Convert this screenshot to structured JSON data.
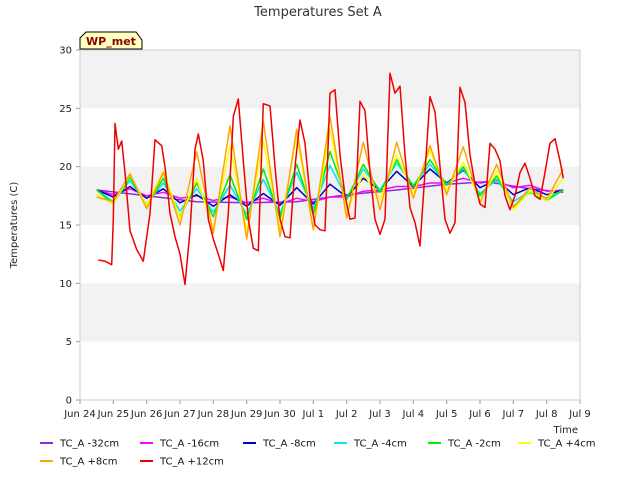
{
  "chart_data": {
    "type": "line",
    "title": "Temperatures Set A",
    "xlabel": "Time",
    "ylabel": "Temperatures (C)",
    "badge": "WP_met",
    "x_unit": "days starting Jun 24",
    "xlim": [
      0,
      15
    ],
    "ylim": [
      0,
      30
    ],
    "y_ticks": [
      0,
      5,
      10,
      15,
      20,
      25,
      30
    ],
    "x_ticks": [
      "Jun 24",
      "Jun 25",
      "Jun 26",
      "Jun 27",
      "Jun 28",
      "Jun 29",
      "Jun 30",
      "Jul 1",
      "Jul 2",
      "Jul 3",
      "Jul 4",
      "Jul 5",
      "Jul 6",
      "Jul 7",
      "Jul 8",
      "Jul 9"
    ],
    "grid": "horizontal bands",
    "legend_position": "bottom",
    "series": [
      {
        "name": "TC_A -32cm",
        "color": "#8a2be2",
        "x": [
          0.5,
          2,
          3.5,
          5,
          6.5,
          8,
          9.5,
          11,
          12.2,
          13.5,
          14.5
        ],
        "y": [
          18.0,
          17.5,
          17.0,
          16.9,
          17.0,
          17.6,
          18.0,
          18.5,
          18.7,
          18.1,
          17.8
        ]
      },
      {
        "name": "TC_A -16cm",
        "color": "#ff00ff",
        "x": [
          0.5,
          1.0,
          1.5,
          2.0,
          2.5,
          3.0,
          3.5,
          4.0,
          4.5,
          5.0,
          5.5,
          6.0,
          6.5,
          7.0,
          7.5,
          8.0,
          8.5,
          9.0,
          9.5,
          10.0,
          10.5,
          11.0,
          11.5,
          12.0,
          12.5,
          13.0,
          13.5,
          14.0,
          14.5
        ],
        "y": [
          18.0,
          17.6,
          18.1,
          17.5,
          17.8,
          17.3,
          17.5,
          17.1,
          17.4,
          16.9,
          17.3,
          16.8,
          17.3,
          17.0,
          17.4,
          17.4,
          17.9,
          18.0,
          18.3,
          18.3,
          18.6,
          18.6,
          19.0,
          18.6,
          18.8,
          18.2,
          18.4,
          17.9,
          18.0
        ]
      },
      {
        "name": "TC_A -8cm",
        "color": "#0000cd",
        "x": [
          0.5,
          1.0,
          1.5,
          2.0,
          2.5,
          3.0,
          3.5,
          4.0,
          4.5,
          5.0,
          5.5,
          6.0,
          6.5,
          7.0,
          7.5,
          8.0,
          8.5,
          9.0,
          9.5,
          10.0,
          10.5,
          11.0,
          11.5,
          12.0,
          12.5,
          13.0,
          13.5,
          14.0,
          14.5
        ],
        "y": [
          18.0,
          17.4,
          18.3,
          17.3,
          18.1,
          16.9,
          17.6,
          16.6,
          17.6,
          16.6,
          17.7,
          16.7,
          18.2,
          16.8,
          18.5,
          17.4,
          19.0,
          18.0,
          19.6,
          18.3,
          19.8,
          18.6,
          19.7,
          18.2,
          18.9,
          17.6,
          18.2,
          17.6,
          18.0
        ]
      },
      {
        "name": "TC_A -4cm",
        "color": "#00e5ee",
        "x": [
          0.5,
          1.0,
          1.5,
          2.0,
          2.5,
          3.0,
          3.5,
          4.0,
          4.5,
          5.0,
          5.5,
          6.0,
          6.5,
          7.0,
          7.5,
          8.0,
          8.5,
          9.0,
          9.5,
          10.0,
          10.5,
          11.0,
          11.5,
          12.0,
          12.5,
          13.0,
          13.5,
          14.0,
          14.5
        ],
        "y": [
          18.0,
          17.0,
          18.8,
          16.8,
          18.6,
          16.2,
          18.1,
          16.1,
          18.4,
          15.9,
          18.9,
          16.0,
          19.5,
          16.4,
          20.1,
          17.3,
          19.8,
          18.0,
          20.3,
          18.4,
          20.2,
          18.5,
          19.8,
          17.7,
          18.9,
          17.0,
          17.9,
          17.3,
          18.0
        ]
      },
      {
        "name": "TC_A -2cm",
        "color": "#00ee00",
        "x": [
          0.5,
          1.0,
          1.5,
          2.0,
          2.5,
          3.0,
          3.5,
          4.0,
          4.5,
          5.0,
          5.5,
          6.0,
          6.5,
          7.0,
          7.5,
          8.0,
          8.5,
          9.0,
          9.5,
          10.0,
          10.5,
          11.0,
          11.5,
          12.0,
          12.5,
          13.0,
          13.5,
          14.0,
          14.5
        ],
        "y": [
          18.0,
          16.8,
          19.1,
          16.6,
          19.0,
          15.7,
          18.6,
          15.7,
          19.3,
          15.5,
          19.8,
          15.6,
          20.2,
          15.9,
          21.3,
          17.2,
          20.2,
          17.8,
          20.6,
          18.3,
          20.6,
          18.4,
          20.0,
          17.5,
          19.2,
          16.6,
          17.8,
          17.1,
          18.0
        ]
      },
      {
        "name": "TC_A +4cm",
        "color": "#ffff00",
        "x": [
          0.5,
          1.0,
          1.5,
          2.0,
          2.5,
          3.0,
          3.5,
          4.0,
          4.5,
          5.0,
          5.5,
          6.0,
          6.5,
          7.0,
          7.5,
          8.0,
          8.5,
          9.0,
          9.5,
          10.0,
          10.5,
          11.0,
          11.5,
          12.0,
          12.5,
          13.0,
          13.5,
          14.0,
          14.5
        ],
        "y": [
          17.6,
          16.8,
          19.3,
          16.7,
          19.6,
          15.6,
          19.0,
          14.7,
          21.8,
          14.5,
          22.2,
          14.7,
          22.7,
          14.6,
          23.2,
          16.1,
          19.4,
          17.2,
          21.0,
          17.7,
          21.4,
          17.9,
          20.4,
          17.1,
          19.6,
          16.3,
          17.9,
          17.1,
          19.0
        ]
      },
      {
        "name": "TC_A +8cm",
        "color": "#ffa500",
        "x": [
          0.5,
          1.0,
          1.5,
          2.0,
          2.5,
          3.0,
          3.5,
          4.0,
          4.5,
          5.0,
          5.5,
          6.0,
          6.5,
          7.0,
          7.5,
          8.0,
          8.5,
          9.0,
          9.5,
          10.0,
          10.5,
          11.0,
          11.5,
          12.0,
          12.5,
          13.0,
          13.5,
          14.0,
          14.5
        ],
        "y": [
          17.4,
          17.0,
          19.4,
          16.4,
          19.5,
          15.0,
          21.3,
          14.3,
          23.5,
          13.8,
          23.9,
          14.0,
          23.2,
          14.6,
          24.3,
          15.6,
          22.1,
          16.3,
          22.1,
          17.3,
          21.8,
          17.6,
          21.7,
          16.9,
          20.2,
          16.5,
          18.2,
          17.2,
          19.8
        ]
      },
      {
        "name": "TC_A +12cm",
        "color": "#ee0000",
        "x": [
          0.55,
          0.75,
          0.95,
          1.0,
          1.05,
          1.15,
          1.25,
          1.35,
          1.5,
          1.7,
          1.9,
          2.1,
          2.25,
          2.45,
          2.55,
          2.7,
          2.85,
          3.0,
          3.15,
          3.3,
          3.45,
          3.55,
          3.7,
          3.85,
          4.0,
          4.15,
          4.3,
          4.45,
          4.6,
          4.75,
          4.9,
          5.05,
          5.2,
          5.35,
          5.5,
          5.7,
          5.85,
          6.0,
          6.15,
          6.3,
          6.45,
          6.6,
          6.75,
          6.9,
          7.05,
          7.2,
          7.35,
          7.5,
          7.65,
          7.8,
          7.95,
          8.1,
          8.25,
          8.4,
          8.55,
          8.7,
          8.85,
          9.0,
          9.15,
          9.3,
          9.45,
          9.6,
          9.75,
          9.9,
          10.05,
          10.2,
          10.35,
          10.5,
          10.65,
          10.8,
          10.95,
          11.1,
          11.25,
          11.4,
          11.55,
          11.7,
          11.85,
          12.0,
          12.15,
          12.3,
          12.45,
          12.6,
          12.75,
          12.9,
          13.05,
          13.2,
          13.35,
          13.5,
          13.65,
          13.8,
          13.95,
          14.1,
          14.25,
          14.4,
          14.5
        ],
        "y": [
          12.0,
          11.9,
          11.6,
          15.5,
          23.7,
          21.5,
          22.2,
          19.5,
          14.5,
          12.9,
          11.9,
          16.0,
          22.3,
          21.8,
          20.0,
          16.0,
          14.0,
          12.5,
          9.9,
          14.5,
          21.5,
          22.8,
          20.5,
          15.5,
          13.8,
          12.5,
          11.1,
          16.0,
          24.3,
          25.8,
          20.5,
          15.5,
          13.0,
          12.8,
          25.4,
          25.2,
          20.0,
          15.5,
          14.0,
          13.9,
          20.0,
          24.0,
          22.0,
          17.5,
          15.0,
          14.6,
          14.5,
          26.3,
          26.6,
          21.0,
          17.5,
          15.5,
          15.6,
          25.6,
          24.8,
          19.5,
          15.5,
          14.2,
          15.5,
          28.0,
          26.3,
          26.9,
          21.0,
          16.5,
          15.2,
          13.2,
          19.5,
          26.0,
          24.7,
          20.0,
          15.5,
          14.3,
          15.2,
          26.8,
          25.5,
          21.0,
          18.5,
          16.8,
          16.5,
          22.0,
          21.5,
          20.5,
          17.5,
          16.3,
          17.5,
          19.5,
          20.3,
          19.0,
          17.5,
          17.2,
          19.5,
          22.0,
          22.4,
          20.5,
          19.0
        ]
      }
    ]
  }
}
